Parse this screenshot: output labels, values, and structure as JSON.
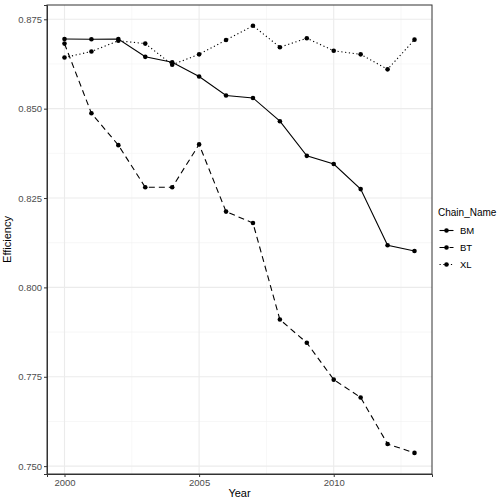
{
  "chart_data": {
    "type": "line",
    "x_label": "Year",
    "y_label": "Efficiency",
    "legend_title": "Chain_Name",
    "legend": "right",
    "grid": true,
    "x": [
      2000,
      2001,
      2002,
      2003,
      2004,
      2005,
      2006,
      2007,
      2008,
      2009,
      2010,
      2011,
      2012,
      2013
    ],
    "series": [
      {
        "name": "BM",
        "color": "#000000",
        "line_style": "solid",
        "marker": "circle",
        "values": [
          0.8695,
          0.8694,
          0.8695,
          0.8645,
          0.863,
          0.859,
          0.8537,
          0.853,
          0.8465,
          0.8368,
          0.8345,
          0.8275,
          0.8118,
          0.8102
        ]
      },
      {
        "name": "BT",
        "color": "#000000",
        "line_style": "dashed",
        "marker": "circle",
        "values": [
          0.8682,
          0.8487,
          0.8398,
          0.828,
          0.828,
          0.84,
          0.8212,
          0.818,
          0.791,
          0.7845,
          0.7742,
          0.7692,
          0.7562,
          0.7537
        ]
      },
      {
        "name": "XL",
        "color": "#000000",
        "line_style": "dotted",
        "marker": "circle",
        "values": [
          0.8643,
          0.866,
          0.869,
          0.8682,
          0.8623,
          0.8652,
          0.8692,
          0.8732,
          0.8672,
          0.8697,
          0.8662,
          0.8652,
          0.861,
          0.8693
        ]
      }
    ],
    "xlim": [
      1999.35,
      2013.65
    ],
    "xticks": [
      2000,
      2005,
      2010
    ],
    "ylim": [
      0.7478,
      0.879
    ],
    "yticks": [
      {
        "value": 0.75,
        "label": "0.750"
      },
      0.775,
      {
        "value": 0.8,
        "label": "0.800"
      },
      0.825,
      {
        "value": 0.85,
        "label": "0.850"
      },
      0.875
    ]
  }
}
